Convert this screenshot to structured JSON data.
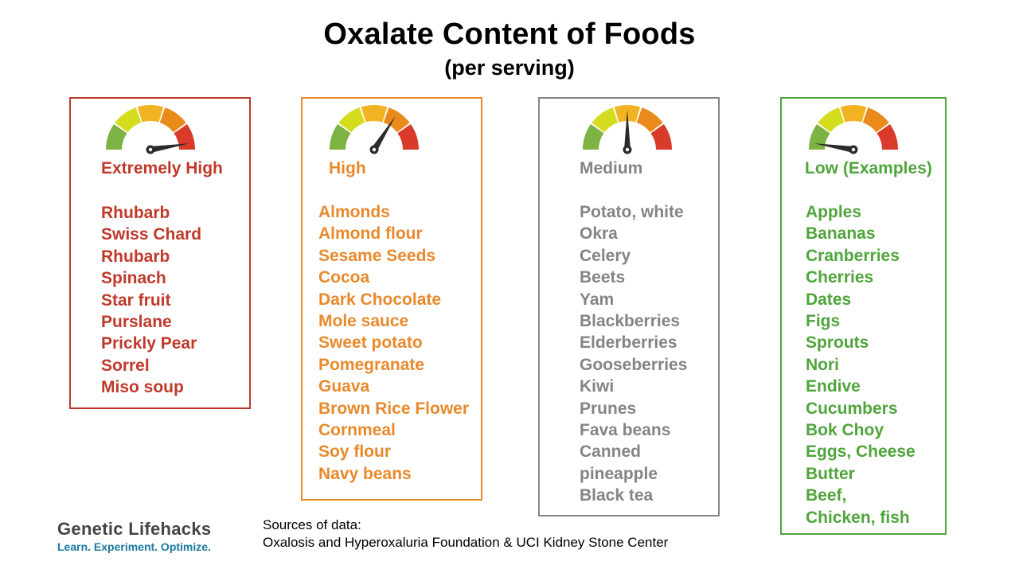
{
  "header": {
    "title": "Oxalate Content of Foods",
    "subtitle": "(per serving)"
  },
  "gauge_colors": [
    "#7cb342",
    "#d4dc1e",
    "#f2b323",
    "#ea8a1a",
    "#d93a2a"
  ],
  "categories": [
    {
      "label": "Extremely High",
      "color": "#c0392b",
      "gauge_level": 0.95,
      "foods": [
        "Rhubarb",
        "Swiss Chard",
        "Rhubarb",
        "Spinach",
        "Star fruit",
        "Purslane",
        "Prickly Pear",
        "Sorrel",
        "Miso soup"
      ]
    },
    {
      "label": "High",
      "color": "#e8892b",
      "gauge_level": 0.68,
      "foods": [
        "Almonds",
        "Almond flour",
        "Sesame Seeds",
        "Cocoa",
        "Dark Chocolate",
        "Mole sauce",
        "Sweet potato",
        "Pomegranate",
        "Guava",
        "Brown Rice Flower",
        "Cornmeal",
        "Soy flour",
        "Navy beans"
      ]
    },
    {
      "label": "Medium",
      "color": "#848484",
      "gauge_level": 0.5,
      "foods": [
        "Potato, white",
        "Okra",
        "Celery",
        "Beets",
        "Yam",
        "Blackberries",
        "Elderberries",
        "Gooseberries",
        "Kiwi",
        "Prunes",
        "Fava beans",
        "Canned",
        "pineapple",
        "Black tea"
      ]
    },
    {
      "label": "Low (Examples)",
      "color": "#4fa53c",
      "gauge_level": 0.05,
      "foods": [
        "Apples",
        "Bananas",
        "Cranberries",
        "Cherries",
        "Dates",
        "Figs",
        "Sprouts",
        "Nori",
        "Endive",
        "Cucumbers",
        "Bok Choy",
        "Eggs, Cheese",
        "Butter",
        "Beef,",
        "Chicken, fish"
      ]
    }
  ],
  "logo": {
    "name": "Genetic Lifehacks",
    "tagline": "Learn. Experiment. Optimize."
  },
  "sources": {
    "line1": "Sources of data:",
    "line2": "Oxalosis and Hyperoxaluria Foundation & UCI Kidney Stone Center"
  }
}
